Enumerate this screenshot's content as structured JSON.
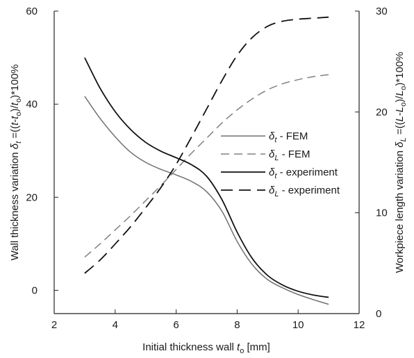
{
  "chart_data": {
    "type": "line",
    "xlabel": "Initial thickness wall t_o [mm]",
    "xlabel_parts": {
      "before": "Initial thickness wall ",
      "var": "t",
      "sub": "o",
      "after": " [mm]"
    },
    "ylabel_left": "Wall thickness variation δt =((t-to)/to)*100%",
    "ylabel_left_parts": {
      "pre": "Wall thickness variation ",
      "delta": "δ",
      "delta_sub": "t",
      "eq": " =((",
      "t1": "t",
      "dash": "-",
      "t2": "t",
      "s1": "o",
      "mid": ")/",
      "t3": "t",
      "s2": "o",
      "post": ")*100%"
    },
    "ylabel_right": "Workpiece length variation δL =((L-Lo)/Lo)*100%",
    "ylabel_right_parts": {
      "pre": "Workpiece length variation ",
      "delta": "δ",
      "delta_sub": "L",
      "eq": " =((",
      "t1": "L",
      "dash": "-",
      "t2": "L",
      "s1": "o",
      "mid": ")/",
      "t3": "L",
      "s2": "o",
      "post": ")*100%"
    },
    "xlim": [
      2,
      12
    ],
    "ylim_left": [
      -5,
      60
    ],
    "ylim_right": [
      0,
      30
    ],
    "x_ticks": [
      "2",
      "4",
      "6",
      "8",
      "10",
      "12"
    ],
    "y_left_ticks": [
      "0",
      "20",
      "40",
      "60"
    ],
    "y_right_ticks": [
      "0",
      "10",
      "20",
      "30"
    ],
    "grid": false,
    "legend_position": "right-center",
    "series": [
      {
        "name": "δt - FEM",
        "symbol": "δ",
        "symbol_sub": "t",
        "suffix": " - FEM",
        "axis": "left",
        "color": "#707070",
        "dash": "solid",
        "x": [
          3,
          3.5,
          4,
          4.5,
          5,
          5.5,
          6,
          6.5,
          7,
          7.5,
          8,
          8.5,
          9,
          9.5,
          10,
          10.5,
          11
        ],
        "y": [
          41.7,
          37,
          33,
          29.7,
          27.5,
          26,
          24.8,
          23.4,
          21.2,
          17,
          10.5,
          5.5,
          2.3,
          0.5,
          -0.9,
          -2,
          -3
        ]
      },
      {
        "name": "δL - FEM",
        "symbol": "δ",
        "symbol_sub": "L",
        "suffix": " - FEM",
        "axis": "right",
        "color": "#808080",
        "dash": "dashed",
        "x": [
          3,
          3.5,
          4,
          4.5,
          5,
          5.5,
          6,
          6.5,
          7,
          7.5,
          8,
          8.5,
          9,
          9.5,
          10,
          10.5,
          11
        ],
        "y": [
          5.6,
          6.9,
          8.3,
          9.7,
          11.2,
          12.7,
          14.3,
          15.9,
          17.4,
          18.9,
          20.2,
          21.3,
          22.2,
          22.8,
          23.2,
          23.5,
          23.7
        ]
      },
      {
        "name": "δt - experiment",
        "symbol": "δ",
        "symbol_sub": "t",
        "suffix": " - experiment",
        "axis": "left",
        "color": "#111111",
        "dash": "solid",
        "x": [
          3,
          3.5,
          4,
          4.5,
          5,
          5.5,
          6,
          6.5,
          7,
          7.5,
          8,
          8.5,
          9,
          9.5,
          10,
          10.5,
          11
        ],
        "y": [
          50,
          43.5,
          38.4,
          34.6,
          31.8,
          29.9,
          28.5,
          27,
          24.5,
          19.5,
          12.5,
          6.8,
          3.2,
          1.1,
          -0.2,
          -1,
          -1.5
        ]
      },
      {
        "name": "δL - experiment",
        "symbol": "δ",
        "symbol_sub": "L",
        "suffix": " - experiment",
        "axis": "right",
        "color": "#111111",
        "dash": "longdash",
        "x": [
          3,
          3.5,
          4,
          4.5,
          5,
          5.5,
          6,
          6.5,
          7,
          7.5,
          8,
          8.5,
          9,
          9.5,
          10,
          10.5,
          11
        ],
        "y": [
          4,
          5.3,
          6.9,
          8.6,
          10.5,
          12.5,
          14.8,
          17.5,
          20.3,
          23.1,
          25.6,
          27.4,
          28.5,
          29,
          29.2,
          29.3,
          29.4
        ]
      }
    ]
  }
}
